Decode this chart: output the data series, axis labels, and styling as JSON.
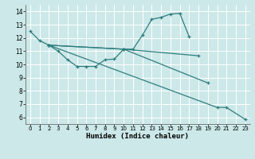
{
  "xlabel": "Humidex (Indice chaleur)",
  "xlim": [
    -0.5,
    23.5
  ],
  "ylim": [
    5.5,
    14.5
  ],
  "yticks": [
    6,
    7,
    8,
    9,
    10,
    11,
    12,
    13,
    14
  ],
  "xticks": [
    0,
    1,
    2,
    3,
    4,
    5,
    6,
    7,
    8,
    9,
    10,
    11,
    12,
    13,
    14,
    15,
    16,
    17,
    18,
    19,
    20,
    21,
    22,
    23
  ],
  "bg_color": "#cce8e8",
  "grid_color": "#ffffff",
  "line_color": "#2e7d7d",
  "line1_x": [
    0,
    1,
    2,
    3,
    4,
    5,
    6,
    7,
    8,
    9,
    10,
    11,
    12,
    13,
    14,
    15,
    16,
    17
  ],
  "line1_y": [
    12.5,
    11.8,
    11.45,
    11.0,
    10.35,
    9.85,
    9.85,
    9.85,
    10.35,
    10.4,
    11.15,
    11.15,
    12.2,
    13.4,
    13.55,
    13.8,
    13.85,
    12.1
  ],
  "line2_x": [
    2,
    10,
    18
  ],
  "line2_y": [
    11.45,
    11.15,
    10.65
  ],
  "line3_x": [
    2,
    10,
    19
  ],
  "line3_y": [
    11.45,
    11.15,
    8.6
  ],
  "line4_x": [
    2,
    20,
    21,
    23
  ],
  "line4_y": [
    11.45,
    6.75,
    6.75,
    5.85
  ]
}
